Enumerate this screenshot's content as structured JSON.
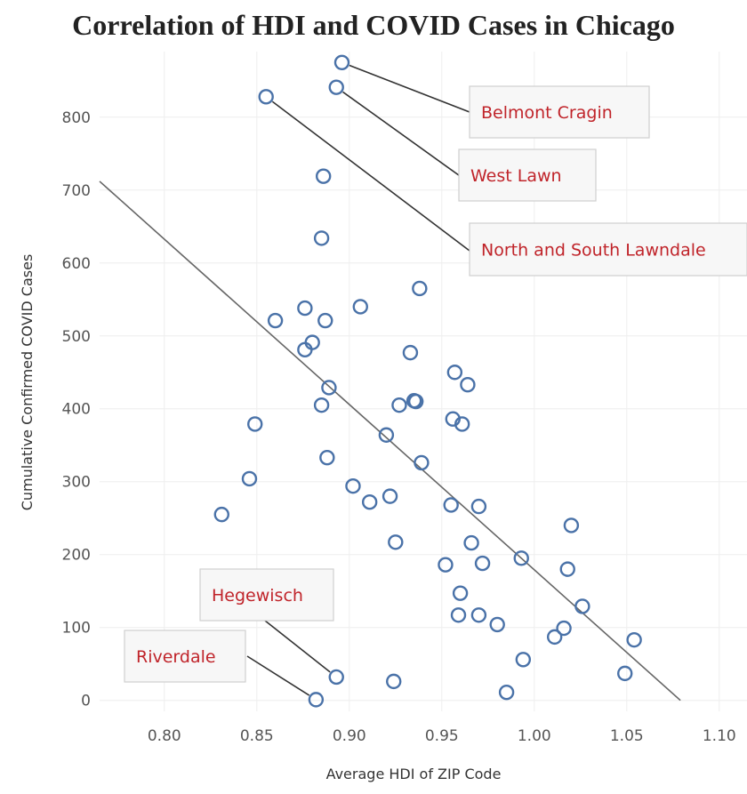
{
  "chart_data": {
    "type": "scatter",
    "title": "Correlation of HDI and COVID Cases in Chicago",
    "xlabel": "Average HDI of ZIP Code",
    "ylabel": "Cumulative Confirmed COVID Cases",
    "xlim": [
      0.765,
      1.115
    ],
    "ylim": [
      -15,
      890
    ],
    "xticks": [
      {
        "value": 0.8,
        "label": "0.80"
      },
      {
        "value": 0.85,
        "label": "0.85"
      },
      {
        "value": 0.9,
        "label": "0.90"
      },
      {
        "value": 0.95,
        "label": "0.95"
      },
      {
        "value": 1.0,
        "label": "1.00"
      },
      {
        "value": 1.05,
        "label": "1.05"
      },
      {
        "value": 1.1,
        "label": "1.10"
      }
    ],
    "yticks": [
      {
        "value": 0,
        "label": "0"
      },
      {
        "value": 100,
        "label": "100"
      },
      {
        "value": 200,
        "label": "200"
      },
      {
        "value": 300,
        "label": "300"
      },
      {
        "value": 400,
        "label": "400"
      },
      {
        "value": 500,
        "label": "500"
      },
      {
        "value": 600,
        "label": "600"
      },
      {
        "value": 700,
        "label": "700"
      },
      {
        "value": 800,
        "label": "800"
      }
    ],
    "grid": true,
    "points": [
      {
        "x": 0.896,
        "y": 875
      },
      {
        "x": 0.893,
        "y": 841
      },
      {
        "x": 0.855,
        "y": 828
      },
      {
        "x": 0.886,
        "y": 719
      },
      {
        "x": 0.885,
        "y": 634
      },
      {
        "x": 0.938,
        "y": 565
      },
      {
        "x": 0.876,
        "y": 538
      },
      {
        "x": 0.906,
        "y": 540
      },
      {
        "x": 0.86,
        "y": 521
      },
      {
        "x": 0.887,
        "y": 521
      },
      {
        "x": 0.88,
        "y": 491
      },
      {
        "x": 0.876,
        "y": 481
      },
      {
        "x": 0.933,
        "y": 477
      },
      {
        "x": 0.957,
        "y": 450
      },
      {
        "x": 0.964,
        "y": 433
      },
      {
        "x": 0.889,
        "y": 429
      },
      {
        "x": 0.935,
        "y": 411
      },
      {
        "x": 0.936,
        "y": 410
      },
      {
        "x": 0.927,
        "y": 405
      },
      {
        "x": 0.885,
        "y": 405
      },
      {
        "x": 0.956,
        "y": 386
      },
      {
        "x": 0.961,
        "y": 379
      },
      {
        "x": 0.849,
        "y": 379
      },
      {
        "x": 0.92,
        "y": 364
      },
      {
        "x": 0.888,
        "y": 333
      },
      {
        "x": 0.939,
        "y": 326
      },
      {
        "x": 0.846,
        "y": 304
      },
      {
        "x": 0.902,
        "y": 294
      },
      {
        "x": 0.922,
        "y": 280
      },
      {
        "x": 0.911,
        "y": 272
      },
      {
        "x": 0.955,
        "y": 268
      },
      {
        "x": 0.97,
        "y": 266
      },
      {
        "x": 0.831,
        "y": 255
      },
      {
        "x": 1.02,
        "y": 240
      },
      {
        "x": 0.925,
        "y": 217
      },
      {
        "x": 0.966,
        "y": 216
      },
      {
        "x": 0.993,
        "y": 195
      },
      {
        "x": 0.952,
        "y": 186
      },
      {
        "x": 0.972,
        "y": 188
      },
      {
        "x": 1.018,
        "y": 180
      },
      {
        "x": 0.96,
        "y": 147
      },
      {
        "x": 1.026,
        "y": 129
      },
      {
        "x": 0.959,
        "y": 117
      },
      {
        "x": 0.97,
        "y": 117
      },
      {
        "x": 0.98,
        "y": 104
      },
      {
        "x": 1.016,
        "y": 99
      },
      {
        "x": 1.011,
        "y": 87
      },
      {
        "x": 1.054,
        "y": 83
      },
      {
        "x": 0.994,
        "y": 56
      },
      {
        "x": 1.049,
        "y": 37
      },
      {
        "x": 0.893,
        "y": 32
      },
      {
        "x": 0.924,
        "y": 26
      },
      {
        "x": 0.985,
        "y": 11
      },
      {
        "x": 0.882,
        "y": 1
      }
    ],
    "trendline": {
      "x": [
        0.765,
        1.079
      ],
      "y": [
        712,
        0
      ]
    },
    "annotations": [
      {
        "label": "Belmont Cragin",
        "point": {
          "x": 0.896,
          "y": 875
        }
      },
      {
        "label": "West Lawn",
        "point": {
          "x": 0.893,
          "y": 841
        }
      },
      {
        "label": "North and South Lawndale",
        "point": {
          "x": 0.855,
          "y": 828
        }
      },
      {
        "label": "Hegewisch",
        "point": {
          "x": 0.893,
          "y": 32
        }
      },
      {
        "label": "Riverdale",
        "point": {
          "x": 0.882,
          "y": 1
        }
      }
    ],
    "colors": {
      "marker": "#4a72a8",
      "trendline": "#666666",
      "annotation_text": "#c0242a",
      "grid": "#eeeeee"
    }
  }
}
